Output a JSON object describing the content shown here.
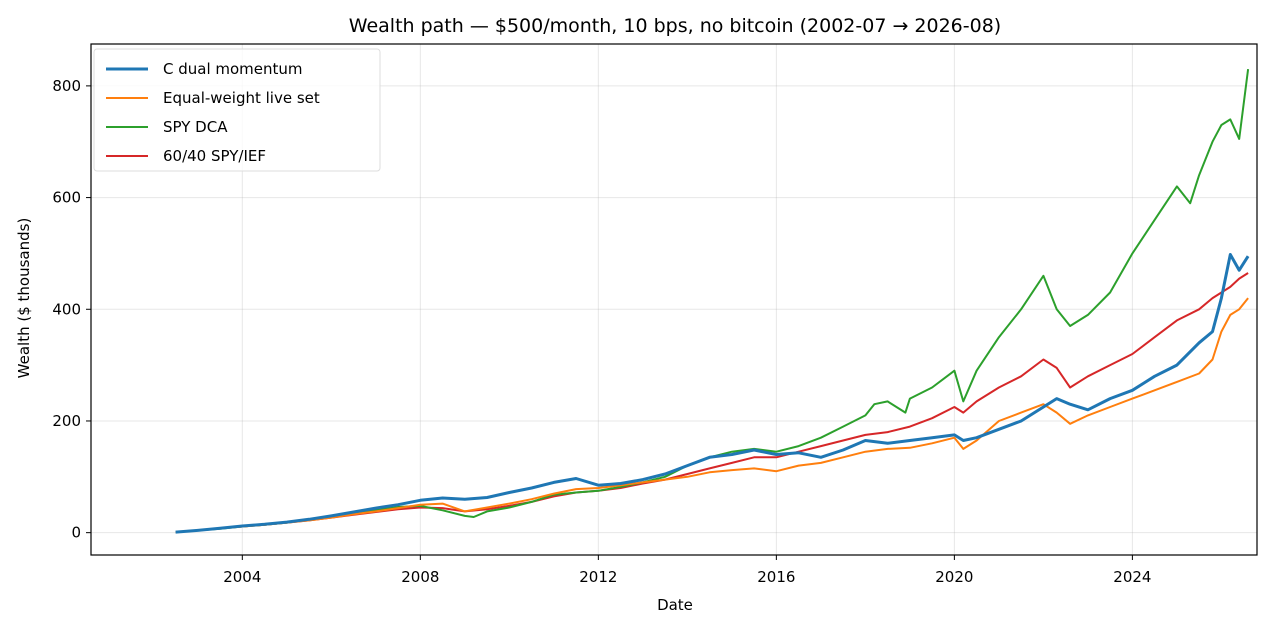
{
  "chart_data": {
    "type": "line",
    "title": "Wealth path — $500/month, 10 bps, no bitcoin (2002-07 → 2026-08)",
    "xlabel": "Date",
    "ylabel": "Wealth ($ thousands)",
    "xlim": [
      2000.6,
      2026.8
    ],
    "ylim": [
      -40,
      875
    ],
    "xticks": [
      2004,
      2008,
      2012,
      2016,
      2020,
      2024
    ],
    "yticks": [
      0,
      200,
      400,
      600,
      800
    ],
    "grid": true,
    "legend_position": "top-left",
    "series": [
      {
        "name": "C dual momentum",
        "color": "#1f77b4",
        "width": 3,
        "x": [
          2002.5,
          2003.0,
          2003.5,
          2004.0,
          2004.5,
          2005.0,
          2005.5,
          2006.0,
          2006.5,
          2007.0,
          2007.5,
          2008.0,
          2008.5,
          2009.0,
          2009.5,
          2010.0,
          2010.5,
          2011.0,
          2011.5,
          2012.0,
          2012.5,
          2013.0,
          2013.5,
          2014.0,
          2014.5,
          2015.0,
          2015.5,
          2016.0,
          2016.5,
          2017.0,
          2017.5,
          2018.0,
          2018.5,
          2019.0,
          2019.5,
          2020.0,
          2020.2,
          2020.5,
          2021.0,
          2021.5,
          2022.0,
          2022.3,
          2022.6,
          2023.0,
          2023.5,
          2024.0,
          2024.5,
          2025.0,
          2025.5,
          2025.8,
          2026.0,
          2026.2,
          2026.4,
          2026.6
        ],
        "y": [
          1,
          4,
          8,
          12,
          15,
          19,
          24,
          30,
          37,
          44,
          50,
          58,
          62,
          60,
          63,
          72,
          80,
          90,
          97,
          85,
          88,
          95,
          105,
          120,
          135,
          140,
          148,
          140,
          143,
          135,
          148,
          165,
          160,
          165,
          170,
          175,
          165,
          170,
          185,
          200,
          225,
          240,
          230,
          220,
          240,
          255,
          280,
          300,
          340,
          360,
          420,
          498,
          470,
          495
        ]
      },
      {
        "name": "Equal-weight live set",
        "color": "#ff7f0e",
        "width": 2,
        "x": [
          2002.5,
          2003.0,
          2003.5,
          2004.0,
          2004.5,
          2005.0,
          2005.5,
          2006.0,
          2006.5,
          2007.0,
          2007.5,
          2008.0,
          2008.5,
          2009.0,
          2009.5,
          2010.0,
          2010.5,
          2011.0,
          2011.5,
          2012.0,
          2012.5,
          2013.0,
          2013.5,
          2014.0,
          2014.5,
          2015.0,
          2015.5,
          2016.0,
          2016.5,
          2017.0,
          2017.5,
          2018.0,
          2018.5,
          2019.0,
          2019.5,
          2020.0,
          2020.2,
          2020.5,
          2021.0,
          2021.5,
          2022.0,
          2022.3,
          2022.6,
          2023.0,
          2023.5,
          2024.0,
          2024.5,
          2025.0,
          2025.5,
          2025.8,
          2026.0,
          2026.2,
          2026.4,
          2026.6
        ],
        "y": [
          1,
          4,
          8,
          11,
          14,
          18,
          22,
          27,
          33,
          38,
          44,
          50,
          52,
          38,
          45,
          52,
          60,
          70,
          78,
          80,
          85,
          90,
          95,
          100,
          108,
          112,
          115,
          110,
          120,
          125,
          135,
          145,
          150,
          152,
          160,
          170,
          150,
          165,
          200,
          215,
          230,
          215,
          195,
          210,
          225,
          240,
          255,
          270,
          285,
          310,
          360,
          390,
          400,
          420
        ]
      },
      {
        "name": "SPY DCA",
        "color": "#2ca02c",
        "width": 2,
        "x": [
          2002.5,
          2003.0,
          2003.5,
          2004.0,
          2004.5,
          2005.0,
          2005.5,
          2006.0,
          2006.5,
          2007.0,
          2007.5,
          2008.0,
          2008.5,
          2009.0,
          2009.2,
          2009.5,
          2010.0,
          2010.5,
          2011.0,
          2011.5,
          2012.0,
          2012.5,
          2013.0,
          2013.5,
          2014.0,
          2014.5,
          2015.0,
          2015.5,
          2016.0,
          2016.5,
          2017.0,
          2017.5,
          2018.0,
          2018.2,
          2018.5,
          2018.9,
          2019.0,
          2019.5,
          2020.0,
          2020.2,
          2020.5,
          2021.0,
          2021.5,
          2022.0,
          2022.3,
          2022.6,
          2023.0,
          2023.5,
          2024.0,
          2024.5,
          2025.0,
          2025.3,
          2025.5,
          2025.8,
          2026.0,
          2026.2,
          2026.4,
          2026.6
        ],
        "y": [
          1,
          4,
          7,
          11,
          14,
          18,
          23,
          28,
          34,
          40,
          46,
          48,
          40,
          30,
          28,
          38,
          45,
          55,
          68,
          72,
          75,
          82,
          90,
          100,
          120,
          135,
          145,
          150,
          145,
          155,
          170,
          190,
          210,
          230,
          235,
          215,
          240,
          260,
          290,
          235,
          290,
          350,
          400,
          460,
          400,
          370,
          390,
          430,
          500,
          560,
          620,
          590,
          640,
          700,
          730,
          740,
          705,
          830
        ]
      },
      {
        "name": "60/40 SPY/IEF",
        "color": "#d62728",
        "width": 2,
        "x": [
          2002.5,
          2003.0,
          2003.5,
          2004.0,
          2004.5,
          2005.0,
          2005.5,
          2006.0,
          2006.5,
          2007.0,
          2007.5,
          2008.0,
          2008.5,
          2009.0,
          2009.5,
          2010.0,
          2010.5,
          2011.0,
          2011.5,
          2012.0,
          2012.5,
          2013.0,
          2013.5,
          2014.0,
          2014.5,
          2015.0,
          2015.5,
          2016.0,
          2016.5,
          2017.0,
          2017.5,
          2018.0,
          2018.5,
          2019.0,
          2019.5,
          2020.0,
          2020.2,
          2020.5,
          2021.0,
          2021.5,
          2022.0,
          2022.3,
          2022.6,
          2023.0,
          2023.5,
          2024.0,
          2024.5,
          2025.0,
          2025.5,
          2025.8,
          2026.0,
          2026.2,
          2026.4,
          2026.6
        ],
        "y": [
          1,
          4,
          8,
          11,
          14,
          18,
          22,
          27,
          32,
          37,
          42,
          45,
          44,
          38,
          42,
          48,
          55,
          65,
          72,
          75,
          80,
          88,
          95,
          105,
          115,
          125,
          135,
          135,
          145,
          155,
          165,
          175,
          180,
          190,
          205,
          225,
          215,
          235,
          260,
          280,
          310,
          295,
          260,
          280,
          300,
          320,
          350,
          380,
          400,
          420,
          430,
          440,
          455,
          465
        ]
      }
    ]
  }
}
